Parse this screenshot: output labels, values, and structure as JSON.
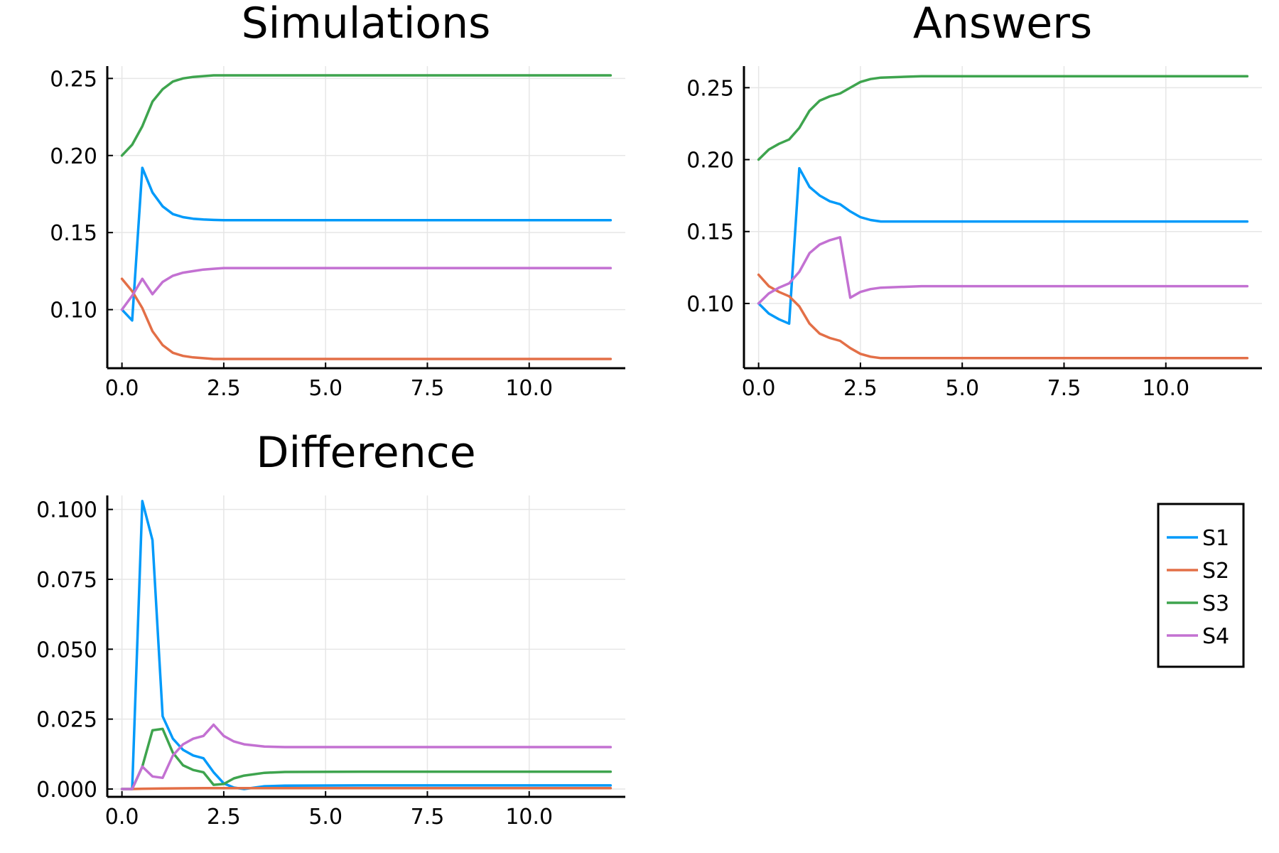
{
  "chart_data": [
    {
      "type": "line",
      "title": "Simulations",
      "xlabel": "",
      "ylabel": "",
      "xlim": [
        -0.36,
        12.36
      ],
      "ylim": [
        0.062,
        0.258
      ],
      "xticks": [
        0.0,
        2.5,
        5.0,
        7.5,
        10.0
      ],
      "xtick_labels": [
        "0.0",
        "2.5",
        "5.0",
        "7.5",
        "10.0"
      ],
      "yticks": [
        0.1,
        0.15,
        0.2,
        0.25
      ],
      "ytick_labels": [
        "0.10",
        "0.15",
        "0.20",
        "0.25"
      ],
      "grid": true,
      "series": [
        {
          "name": "S1",
          "color": "#009AFA",
          "x": [
            0,
            0.25,
            0.5,
            0.75,
            1.0,
            1.25,
            1.5,
            1.75,
            2.0,
            2.25,
            2.5,
            3.0,
            4.0,
            6.0,
            8.0,
            10.0,
            12.0
          ],
          "y": [
            0.1,
            0.093,
            0.192,
            0.176,
            0.167,
            0.162,
            0.16,
            0.159,
            0.1585,
            0.1582,
            0.158,
            0.158,
            0.158,
            0.158,
            0.158,
            0.158,
            0.158
          ]
        },
        {
          "name": "S2",
          "color": "#E36F47",
          "x": [
            0,
            0.25,
            0.5,
            0.75,
            1.0,
            1.25,
            1.5,
            1.75,
            2.0,
            2.25,
            2.5,
            3.0,
            4.0,
            6.0,
            8.0,
            10.0,
            12.0
          ],
          "y": [
            0.12,
            0.112,
            0.101,
            0.086,
            0.077,
            0.072,
            0.07,
            0.069,
            0.0685,
            0.068,
            0.068,
            0.068,
            0.068,
            0.068,
            0.068,
            0.068,
            0.068
          ]
        },
        {
          "name": "S3",
          "color": "#3EA44E",
          "x": [
            0,
            0.25,
            0.5,
            0.75,
            1.0,
            1.25,
            1.5,
            1.75,
            2.0,
            2.25,
            2.5,
            3.0,
            4.0,
            6.0,
            8.0,
            10.0,
            12.0
          ],
          "y": [
            0.2,
            0.207,
            0.219,
            0.235,
            0.243,
            0.248,
            0.25,
            0.251,
            0.2515,
            0.252,
            0.252,
            0.252,
            0.252,
            0.252,
            0.252,
            0.252,
            0.252
          ]
        },
        {
          "name": "S4",
          "color": "#C371D2",
          "x": [
            0,
            0.25,
            0.5,
            0.75,
            1.0,
            1.25,
            1.5,
            1.75,
            2.0,
            2.25,
            2.5,
            3.0,
            4.0,
            6.0,
            8.0,
            10.0,
            12.0
          ],
          "y": [
            0.1,
            0.109,
            0.12,
            0.11,
            0.118,
            0.122,
            0.124,
            0.125,
            0.126,
            0.1265,
            0.127,
            0.127,
            0.127,
            0.127,
            0.127,
            0.127,
            0.127
          ]
        }
      ]
    },
    {
      "type": "line",
      "title": "Answers",
      "xlabel": "",
      "ylabel": "",
      "xlim": [
        -0.36,
        12.36
      ],
      "ylim": [
        0.055,
        0.265
      ],
      "xticks": [
        0.0,
        2.5,
        5.0,
        7.5,
        10.0
      ],
      "xtick_labels": [
        "0.0",
        "2.5",
        "5.0",
        "7.5",
        "10.0"
      ],
      "yticks": [
        0.1,
        0.15,
        0.2,
        0.25
      ],
      "ytick_labels": [
        "0.10",
        "0.15",
        "0.20",
        "0.25"
      ],
      "grid": true,
      "series": [
        {
          "name": "S1",
          "color": "#009AFA",
          "x": [
            0,
            0.25,
            0.5,
            0.75,
            1.0,
            1.25,
            1.5,
            1.75,
            2.0,
            2.25,
            2.5,
            2.75,
            3.0,
            4.0,
            6.0,
            8.0,
            10.0,
            12.0
          ],
          "y": [
            0.1,
            0.093,
            0.089,
            0.086,
            0.194,
            0.181,
            0.175,
            0.171,
            0.169,
            0.164,
            0.16,
            0.158,
            0.157,
            0.157,
            0.157,
            0.157,
            0.157,
            0.157
          ]
        },
        {
          "name": "S2",
          "color": "#E36F47",
          "x": [
            0,
            0.25,
            0.5,
            0.75,
            1.0,
            1.25,
            1.5,
            1.75,
            2.0,
            2.25,
            2.5,
            2.75,
            3.0,
            4.0,
            6.0,
            8.0,
            10.0,
            12.0
          ],
          "y": [
            0.12,
            0.112,
            0.108,
            0.105,
            0.098,
            0.086,
            0.079,
            0.076,
            0.074,
            0.069,
            0.065,
            0.063,
            0.062,
            0.062,
            0.062,
            0.062,
            0.062,
            0.062
          ]
        },
        {
          "name": "S3",
          "color": "#3EA44E",
          "x": [
            0,
            0.25,
            0.5,
            0.75,
            1.0,
            1.25,
            1.5,
            1.75,
            2.0,
            2.25,
            2.5,
            2.75,
            3.0,
            4.0,
            6.0,
            8.0,
            10.0,
            12.0
          ],
          "y": [
            0.2,
            0.207,
            0.211,
            0.214,
            0.222,
            0.234,
            0.241,
            0.244,
            0.246,
            0.25,
            0.254,
            0.256,
            0.257,
            0.258,
            0.258,
            0.258,
            0.258,
            0.258
          ]
        },
        {
          "name": "S4",
          "color": "#C371D2",
          "x": [
            0,
            0.25,
            0.5,
            0.75,
            1.0,
            1.25,
            1.5,
            1.75,
            2.0,
            2.25,
            2.5,
            2.75,
            3.0,
            4.0,
            6.0,
            8.0,
            10.0,
            12.0
          ],
          "y": [
            0.1,
            0.107,
            0.111,
            0.114,
            0.122,
            0.135,
            0.141,
            0.144,
            0.146,
            0.104,
            0.108,
            0.11,
            0.111,
            0.112,
            0.112,
            0.112,
            0.112,
            0.112
          ]
        }
      ]
    },
    {
      "type": "line",
      "title": "Difference",
      "xlabel": "",
      "ylabel": "",
      "xlim": [
        -0.36,
        12.36
      ],
      "ylim": [
        -0.0028,
        0.105
      ],
      "xticks": [
        0.0,
        2.5,
        5.0,
        7.5,
        10.0
      ],
      "xtick_labels": [
        "0.0",
        "2.5",
        "5.0",
        "7.5",
        "10.0"
      ],
      "yticks": [
        0.0,
        0.025,
        0.05,
        0.075,
        0.1
      ],
      "ytick_labels": [
        "0.000",
        "0.025",
        "0.050",
        "0.075",
        "0.100"
      ],
      "grid": true,
      "series": [
        {
          "name": "S1",
          "color": "#009AFA",
          "x": [
            0,
            0.25,
            0.5,
            0.75,
            1.0,
            1.25,
            1.5,
            1.75,
            2.0,
            2.25,
            2.5,
            2.75,
            3.0,
            3.5,
            4.0,
            6.0,
            8.0,
            10.0,
            12.0
          ],
          "y": [
            0.0,
            0.0,
            0.103,
            0.089,
            0.026,
            0.018,
            0.014,
            0.012,
            0.011,
            0.006,
            0.002,
            0.0005,
            0.0,
            0.001,
            0.0012,
            0.0013,
            0.0013,
            0.0013,
            0.0013
          ]
        },
        {
          "name": "S2",
          "color": "#E36F47",
          "x": [
            0,
            0.25,
            0.5,
            1.0,
            2.0,
            3.0,
            4.0,
            6.0,
            8.0,
            10.0,
            12.0
          ],
          "y": [
            0.0,
            0.0,
            0.0001,
            0.0002,
            0.0003,
            0.0003,
            0.0003,
            0.0003,
            0.0003,
            0.0003,
            0.0003
          ]
        },
        {
          "name": "S3",
          "color": "#3EA44E",
          "x": [
            0,
            0.25,
            0.5,
            0.75,
            1.0,
            1.25,
            1.5,
            1.75,
            2.0,
            2.25,
            2.5,
            2.75,
            3.0,
            3.5,
            4.0,
            6.0,
            8.0,
            10.0,
            12.0
          ],
          "y": [
            0.0,
            0.0,
            0.008,
            0.021,
            0.0215,
            0.013,
            0.0085,
            0.0068,
            0.006,
            0.0015,
            0.0018,
            0.0038,
            0.0048,
            0.0058,
            0.0061,
            0.0062,
            0.0062,
            0.0062,
            0.0062
          ]
        },
        {
          "name": "S4",
          "color": "#C371D2",
          "x": [
            0,
            0.25,
            0.5,
            0.75,
            1.0,
            1.25,
            1.5,
            1.75,
            2.0,
            2.25,
            2.5,
            2.75,
            3.0,
            3.5,
            4.0,
            6.0,
            8.0,
            10.0,
            12.0
          ],
          "y": [
            0.0,
            0.0,
            0.008,
            0.0045,
            0.004,
            0.012,
            0.016,
            0.018,
            0.019,
            0.023,
            0.019,
            0.017,
            0.016,
            0.0152,
            0.015,
            0.015,
            0.015,
            0.015,
            0.015
          ]
        }
      ]
    }
  ],
  "legend": {
    "placement": "right, beside bottom-left panel",
    "items": [
      {
        "label": "S1",
        "color": "#009AFA"
      },
      {
        "label": "S2",
        "color": "#E36F47"
      },
      {
        "label": "S3",
        "color": "#3EA44E"
      },
      {
        "label": "S4",
        "color": "#C371D2"
      }
    ]
  }
}
